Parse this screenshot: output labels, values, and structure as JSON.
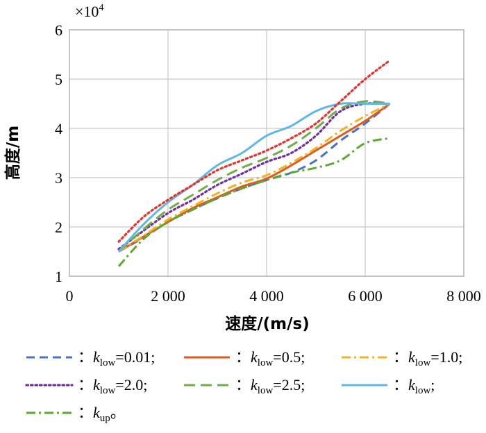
{
  "chart_data": {
    "type": "line",
    "xlabel": "速度/(m/s)",
    "ylabel": "高度/m",
    "y_multiplier": "×10",
    "y_multiplier_exp": "4",
    "xlim": [
      0,
      8000
    ],
    "ylim": [
      1,
      6
    ],
    "x_ticks": [
      0,
      2000,
      4000,
      6000,
      8000
    ],
    "x_tick_labels": [
      "0",
      "2 000",
      "4 000",
      "6 000",
      "8 000"
    ],
    "y_ticks": [
      1,
      2,
      3,
      4,
      5,
      6
    ],
    "y_tick_labels": [
      "1",
      "2",
      "3",
      "4",
      "5",
      "6"
    ],
    "grid": true,
    "legend_position": "bottom",
    "series": [
      {
        "key": "klow_001",
        "legend_prefix": "：",
        "legend_k": "k",
        "legend_sub": "low",
        "legend_suffix": "=0.01;",
        "color": "#4472c4",
        "dash": "dash",
        "x": [
          1000,
          1500,
          2000,
          2500,
          3000,
          3500,
          4000,
          4500,
          5000,
          5500,
          6000,
          6500
        ],
        "y": [
          1.5,
          1.78,
          2.1,
          2.35,
          2.58,
          2.78,
          2.95,
          3.1,
          3.35,
          3.75,
          4.1,
          4.5
        ]
      },
      {
        "key": "klow_05",
        "legend_prefix": "：",
        "legend_k": "k",
        "legend_sub": "low",
        "legend_suffix": "=0.5;",
        "color": "#e05a1e",
        "dash": "solid",
        "x": [
          1000,
          1500,
          2000,
          2500,
          3000,
          3500,
          4000,
          4500,
          5000,
          5500,
          6000,
          6500
        ],
        "y": [
          1.5,
          1.8,
          2.1,
          2.38,
          2.6,
          2.82,
          2.98,
          3.25,
          3.55,
          3.85,
          4.15,
          4.5
        ]
      },
      {
        "key": "klow_10",
        "legend_prefix": "：",
        "legend_k": "k",
        "legend_sub": "low",
        "legend_suffix": "=1.0;",
        "color": "#f0b323",
        "dash": "dashdot",
        "x": [
          1000,
          1500,
          2000,
          2500,
          3000,
          3500,
          4000,
          4500,
          5000,
          5500,
          6000,
          6500
        ],
        "y": [
          1.5,
          1.82,
          2.15,
          2.42,
          2.68,
          2.9,
          3.05,
          3.3,
          3.6,
          3.95,
          4.25,
          4.5
        ]
      },
      {
        "key": "klow_20",
        "legend_prefix": "：",
        "legend_k": "k",
        "legend_sub": "low",
        "legend_suffix": "=2.0;",
        "color": "#7030a0",
        "dash": "dot",
        "x": [
          1000,
          1500,
          2000,
          2500,
          3000,
          3500,
          4000,
          4500,
          5000,
          5500,
          6000,
          6500
        ],
        "y": [
          1.55,
          1.92,
          2.28,
          2.55,
          2.85,
          3.08,
          3.32,
          3.5,
          3.85,
          4.35,
          4.5,
          4.5
        ]
      },
      {
        "key": "klow_25",
        "legend_prefix": "：",
        "legend_k": "k",
        "legend_sub": "low",
        "legend_suffix": "=2.5;",
        "color": "#70ad47",
        "dash": "longdash",
        "x": [
          1000,
          1500,
          2000,
          2500,
          3000,
          3500,
          4000,
          4500,
          5000,
          5500,
          6000,
          6500
        ],
        "y": [
          1.5,
          1.95,
          2.35,
          2.65,
          2.95,
          3.2,
          3.4,
          3.65,
          4.0,
          4.4,
          4.55,
          4.5
        ]
      },
      {
        "key": "klow",
        "legend_prefix": "：",
        "legend_k": "k",
        "legend_sub": "low",
        "legend_suffix": ";",
        "color": "#5eb7e4",
        "dash": "solid",
        "x": [
          1000,
          1500,
          2000,
          2500,
          3000,
          3500,
          4000,
          4500,
          5000,
          5500,
          6000,
          6500
        ],
        "y": [
          1.5,
          2.05,
          2.5,
          2.85,
          3.25,
          3.5,
          3.85,
          4.05,
          4.35,
          4.5,
          4.5,
          4.5
        ]
      },
      {
        "key": "kup_red",
        "legend_prefix": "",
        "legend_k": "",
        "legend_sub": "",
        "legend_suffix": "",
        "color": "#e8322b",
        "dash": "dot",
        "in_legend": false,
        "x": [
          1000,
          1500,
          2000,
          2500,
          3000,
          3500,
          4000,
          4500,
          5000,
          5500,
          6000,
          6500
        ],
        "y": [
          1.7,
          2.2,
          2.55,
          2.85,
          3.15,
          3.35,
          3.55,
          3.8,
          4.1,
          4.55,
          5.0,
          5.38
        ]
      },
      {
        "key": "kup",
        "legend_prefix": "：",
        "legend_k": "k",
        "legend_sub": "up",
        "legend_suffix": "。",
        "color": "#5aaa32",
        "dash": "dashdot",
        "x": [
          1000,
          1500,
          2000,
          2500,
          3000,
          3500,
          4000,
          4500,
          5000,
          5500,
          6000,
          6500
        ],
        "y": [
          1.2,
          1.75,
          2.1,
          2.35,
          2.58,
          2.78,
          2.95,
          3.1,
          3.2,
          3.35,
          3.7,
          3.8
        ]
      }
    ]
  }
}
